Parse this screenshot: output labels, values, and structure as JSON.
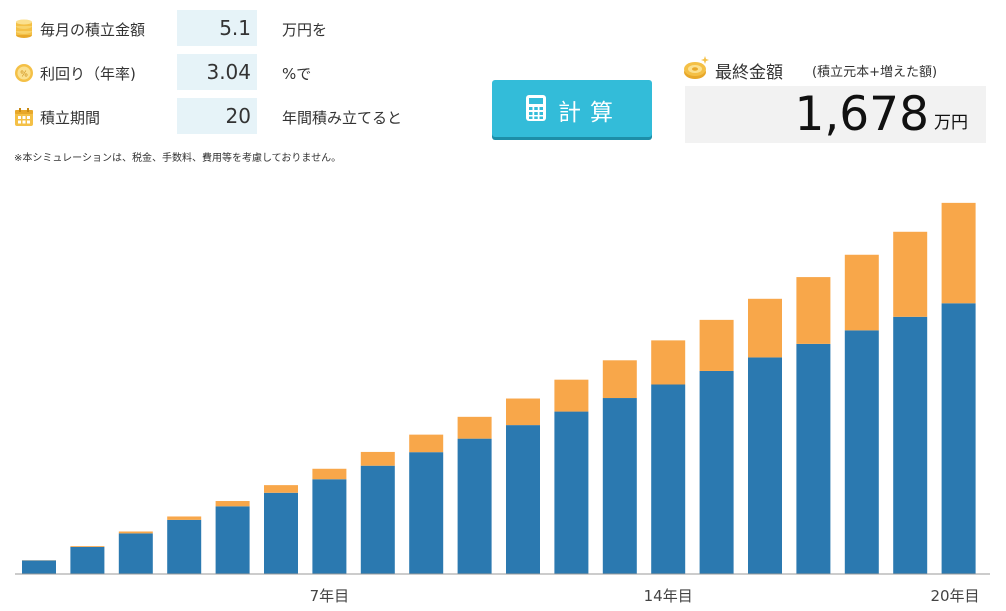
{
  "inputs": {
    "monthly": {
      "label": "毎月の積立金額",
      "value": "5.1",
      "suffix": "万円を"
    },
    "rate": {
      "label": "利回り（年率)",
      "value": "3.04",
      "suffix": "%で"
    },
    "period": {
      "label": "積立期間",
      "value": "20",
      "suffix": "年間積み立てると"
    }
  },
  "note": "※本シミュレーションは、税金、手数料、費用等を考慮しておりません。",
  "calc_button": {
    "label": "計算"
  },
  "result": {
    "title": "最終金額",
    "subtitle": "(積立元本+増えた額)",
    "value": "1,678",
    "unit": "万円"
  },
  "icons": {
    "monthly": "coin-stack-icon",
    "rate": "percent-coin-icon",
    "period": "calendar-icon",
    "button": "calculator-icon",
    "result": "gold-coin-icon"
  },
  "colors": {
    "principal": "#2b79b0",
    "gain": "#f8a74a",
    "button": "#33bcd9",
    "field": "#e6f3f8"
  },
  "chart_data": {
    "type": "bar",
    "stacked": true,
    "categories": [
      "1",
      "2",
      "3",
      "4",
      "5",
      "6",
      "7",
      "8",
      "9",
      "10",
      "11",
      "12",
      "13",
      "14",
      "15",
      "16",
      "17",
      "18",
      "19",
      "20"
    ],
    "tick_labels": [
      {
        "year": 7,
        "label": "7年目"
      },
      {
        "year": 14,
        "label": "14年目"
      },
      {
        "year": 20,
        "label": "20年目"
      }
    ],
    "series": [
      {
        "values": [
          61.2,
          122.4,
          183.6,
          244.8,
          306,
          367.2,
          428.4,
          489.6,
          550.8,
          612,
          673.2,
          734.4,
          795.6,
          856.8,
          918,
          979.2,
          1040.4,
          1101.6,
          1162.8,
          1224
        ]
      },
      {
        "values": [
          0.9,
          3.8,
          8.6,
          15.3,
          24.0,
          34.6,
          47.4,
          62.3,
          79.3,
          98.6,
          120.2,
          144.2,
          170.6,
          199.5,
          231.0,
          265.1,
          302.0,
          341.8,
          384.5,
          454
        ]
      }
    ],
    "ylim": [
      0,
      1700
    ]
  }
}
